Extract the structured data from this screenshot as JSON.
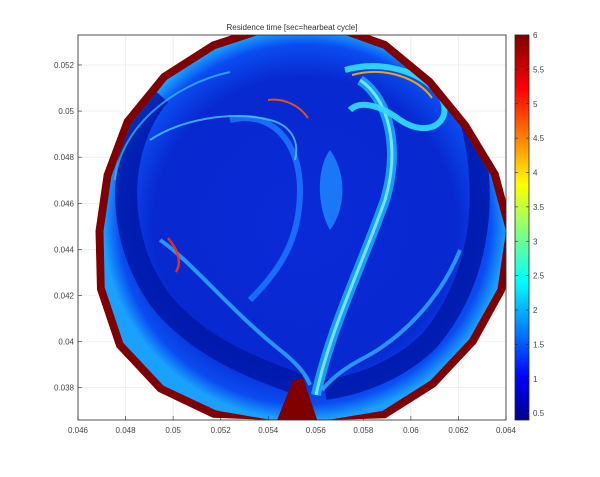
{
  "chart_data": {
    "type": "heatmap",
    "title": "Residence time [sec=hearbeat cycle]",
    "xlabel": "",
    "ylabel": "",
    "xlim": [
      0.046,
      0.064
    ],
    "ylim": [
      0.0366,
      0.0533
    ],
    "x_ticks": [
      "0.046",
      "0.048",
      "0.05",
      "0.052",
      "0.054",
      "0.056",
      "0.058",
      "0.06",
      "0.062",
      "0.064"
    ],
    "y_ticks": [
      "0.038",
      "0.04",
      "0.042",
      "0.044",
      "0.046",
      "0.048",
      "0.05",
      "0.052"
    ],
    "x_tick_values": [
      0.046,
      0.048,
      0.05,
      0.052,
      0.054,
      0.056,
      0.058,
      0.06,
      0.062,
      0.064
    ],
    "y_tick_values": [
      0.038,
      0.04,
      0.042,
      0.044,
      0.046,
      0.048,
      0.05,
      0.052
    ],
    "colorbar": {
      "colormap": "jet",
      "range": [
        0.4,
        6
      ],
      "ticks": [
        "0.5",
        "1",
        "1.5",
        "2",
        "2.5",
        "3",
        "3.5",
        "4",
        "4.5",
        "5",
        "5.5",
        "6"
      ],
      "tick_values": [
        0.5,
        1,
        1.5,
        2,
        2.5,
        3,
        3.5,
        4,
        4.5,
        5,
        5.5,
        6
      ]
    },
    "grid": true,
    "domain_shape": "near-circular vessel cross-section",
    "domain_center": [
      0.0553,
      0.0448
    ],
    "domain_radius": 0.0088,
    "boundary_value": 6,
    "interior_value_typical": 0.7,
    "colors": {
      "boundary": "#800000",
      "background_low": "#00008f",
      "interior_mid": "#0a36e8",
      "streak_high": "#28c8ff"
    }
  }
}
